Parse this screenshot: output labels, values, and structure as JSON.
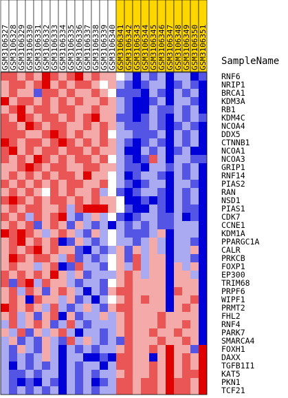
{
  "chart_data": {
    "type": "heatmap",
    "title": "",
    "row_header": "SampleName",
    "columns": [
      {
        "name": "GSM3106327",
        "group": "A"
      },
      {
        "name": "GSM3106328",
        "group": "A"
      },
      {
        "name": "GSM3106329",
        "group": "A"
      },
      {
        "name": "GSM3106330",
        "group": "A"
      },
      {
        "name": "GSM3106331",
        "group": "A"
      },
      {
        "name": "GSM3106332",
        "group": "A"
      },
      {
        "name": "GSM3106333",
        "group": "A"
      },
      {
        "name": "GSM3106334",
        "group": "A"
      },
      {
        "name": "GSM3106335",
        "group": "A"
      },
      {
        "name": "GSM3106336",
        "group": "A"
      },
      {
        "name": "GSM3106337",
        "group": "A"
      },
      {
        "name": "GSM3106338",
        "group": "A"
      },
      {
        "name": "GSM3106339",
        "group": "A"
      },
      {
        "name": "GSM3106340",
        "group": "A"
      },
      {
        "name": "GSM3106341",
        "group": "B"
      },
      {
        "name": "GSM3106342",
        "group": "B"
      },
      {
        "name": "GSM3106343",
        "group": "B"
      },
      {
        "name": "GSM3106344",
        "group": "B"
      },
      {
        "name": "GSM3106345",
        "group": "B"
      },
      {
        "name": "GSM3106346",
        "group": "B"
      },
      {
        "name": "GSM3106347",
        "group": "B"
      },
      {
        "name": "GSM3106348",
        "group": "B"
      },
      {
        "name": "GSM3106349",
        "group": "B"
      },
      {
        "name": "GSM3106350",
        "group": "B"
      },
      {
        "name": "GSM3106351",
        "group": "B"
      }
    ],
    "group_colors": {
      "A": "#ffffff",
      "B": "#ffd700"
    },
    "rows": [
      "RNF6",
      "NRIP1",
      "BRCA1",
      "KDM3A",
      "RB1",
      "KDM4C",
      "NCOA4",
      "DDX5",
      "CTNNB1",
      "NCOA1",
      "NCOA3",
      "GRIP1",
      "RNF14",
      "PIAS2",
      "RAN",
      "NSD1",
      "PIAS1",
      "CDK7",
      "CCNE1",
      "KDM1A",
      "PPARGC1A",
      "CALR",
      "PRKCB",
      "FOXP1",
      "EP300",
      "TRIM68",
      "PRPF6",
      "WIPF1",
      "PRMT2",
      "FHL2",
      "RNF4",
      "PARK7",
      "SMARCA4",
      "FOXH1",
      "DAXX",
      "TGFB1I1",
      "KAT5",
      "PKN1",
      "TCF21"
    ],
    "color_scale": {
      "min": -3,
      "max": 3,
      "low": "#0000d8",
      "mid": "#ffffff",
      "high": "#e00000"
    },
    "values": [
      [
        2.0,
        2.0,
        1.0,
        2.0,
        1.0,
        3.0,
        2.0,
        1.0,
        2.0,
        3.0,
        1.0,
        2.0,
        1.0,
        1.0,
        0.0,
        -1.0,
        -3.0,
        -1.0,
        -2.0,
        -1.0,
        -3.0,
        -1.0,
        -1.0,
        -3.0,
        -2.0
      ],
      [
        1.0,
        2.0,
        2.0,
        1.0,
        2.0,
        3.0,
        1.0,
        2.0,
        1.0,
        2.0,
        2.0,
        1.0,
        0.0,
        1.0,
        -1.0,
        -2.0,
        -3.0,
        -2.0,
        -1.0,
        -1.0,
        -3.0,
        -2.0,
        -1.0,
        -2.0,
        -3.0
      ],
      [
        1.0,
        2.0,
        1.0,
        1.0,
        -2.0,
        2.0,
        2.0,
        1.0,
        2.0,
        1.0,
        1.0,
        2.0,
        1.0,
        0.0,
        -2.0,
        -2.0,
        -2.0,
        -3.0,
        -1.0,
        -2.0,
        -3.0,
        -1.0,
        -2.0,
        -1.0,
        -3.0
      ],
      [
        3.0,
        1.0,
        2.0,
        2.0,
        1.0,
        2.0,
        1.0,
        2.0,
        1.0,
        2.0,
        1.0,
        1.0,
        2.0,
        1.0,
        -1.0,
        -2.0,
        -3.0,
        -3.0,
        -2.0,
        -1.0,
        -3.0,
        -1.0,
        -1.0,
        -2.0,
        -3.0
      ],
      [
        1.0,
        2.0,
        3.0,
        1.0,
        2.0,
        2.0,
        1.0,
        2.0,
        2.0,
        1.0,
        1.0,
        2.0,
        1.0,
        1.0,
        -1.0,
        -2.0,
        -3.0,
        -3.0,
        -1.0,
        -2.0,
        -2.0,
        -1.0,
        -2.0,
        -1.0,
        -3.0
      ],
      [
        2.0,
        1.0,
        3.0,
        2.0,
        1.0,
        2.0,
        2.0,
        1.0,
        2.0,
        1.0,
        2.0,
        3.0,
        1.0,
        1.0,
        -2.0,
        -2.0,
        -3.0,
        -2.0,
        -1.0,
        -2.0,
        -3.0,
        -1.0,
        -2.0,
        -1.0,
        -2.0
      ],
      [
        2.0,
        2.0,
        1.0,
        3.0,
        2.0,
        1.0,
        2.0,
        2.0,
        1.0,
        1.0,
        2.0,
        1.0,
        2.0,
        1.0,
        -1.0,
        -2.0,
        -2.0,
        -2.0,
        -1.0,
        -2.0,
        -3.0,
        -2.0,
        -1.0,
        -2.0,
        -3.0
      ],
      [
        2.0,
        2.0,
        2.0,
        1.0,
        1.0,
        2.0,
        3.0,
        2.0,
        1.0,
        2.0,
        1.0,
        1.0,
        2.0,
        0.0,
        -1.0,
        -1.0,
        -2.0,
        -2.0,
        -2.0,
        -1.0,
        -3.0,
        -1.0,
        -2.0,
        -1.0,
        -3.0
      ],
      [
        3.0,
        2.0,
        1.0,
        2.0,
        2.0,
        1.0,
        2.0,
        3.0,
        2.0,
        1.0,
        2.0,
        1.0,
        2.0,
        1.0,
        -1.0,
        -2.0,
        -3.0,
        -2.0,
        -1.0,
        -2.0,
        -3.0,
        -1.0,
        -2.0,
        -1.0,
        -3.0
      ],
      [
        2.0,
        3.0,
        1.0,
        2.0,
        1.0,
        2.0,
        2.0,
        1.0,
        2.0,
        2.0,
        1.0,
        2.0,
        1.0,
        1.0,
        -1.0,
        -3.0,
        -3.0,
        -1.0,
        -2.0,
        -1.0,
        -3.0,
        -2.0,
        -1.0,
        -3.0,
        -3.0
      ],
      [
        2.0,
        1.0,
        2.0,
        1.0,
        3.0,
        2.0,
        1.0,
        2.0,
        1.0,
        2.0,
        2.0,
        1.0,
        2.0,
        0.0,
        -1.0,
        -2.0,
        -3.0,
        -2.0,
        2.0,
        -1.0,
        -3.0,
        -1.0,
        -1.0,
        -2.0,
        -2.0
      ],
      [
        1.0,
        1.0,
        2.0,
        3.0,
        2.0,
        1.0,
        2.0,
        2.0,
        1.0,
        1.0,
        2.0,
        2.0,
        1.0,
        1.0,
        -1.0,
        -2.0,
        -2.0,
        -3.0,
        -1.0,
        -1.0,
        -2.0,
        -1.0,
        -2.0,
        -1.0,
        -3.0
      ],
      [
        1.0,
        2.0,
        1.0,
        2.0,
        1.0,
        2.0,
        1.0,
        2.0,
        2.0,
        1.0,
        3.0,
        1.0,
        1.0,
        0.0,
        -1.0,
        -3.0,
        -2.0,
        -1.0,
        -1.0,
        -2.0,
        -3.0,
        -1.0,
        -2.0,
        -1.0,
        -3.0
      ],
      [
        2.0,
        1.0,
        2.0,
        1.0,
        2.0,
        1.0,
        2.0,
        1.0,
        2.0,
        2.0,
        1.0,
        1.0,
        2.0,
        0.0,
        -1.0,
        -2.0,
        -3.0,
        -2.0,
        -1.0,
        -1.0,
        -3.0,
        -1.0,
        -1.0,
        -2.0,
        -3.0
      ],
      [
        1.0,
        2.0,
        1.0,
        2.0,
        1.0,
        0.0,
        2.0,
        1.0,
        2.0,
        1.0,
        1.0,
        2.0,
        -1.0,
        0.0,
        -2.0,
        -3.0,
        -2.0,
        -1.0,
        -1.0,
        -2.0,
        -3.0,
        -1.0,
        -2.0,
        -1.0,
        -3.0
      ],
      [
        2.0,
        3.0,
        2.0,
        1.0,
        2.0,
        1.0,
        2.0,
        2.0,
        1.0,
        2.0,
        1.0,
        2.0,
        1.0,
        1.0,
        0.0,
        -3.0,
        -3.0,
        -2.0,
        -3.0,
        -2.0,
        -3.0,
        -1.0,
        -2.0,
        -1.0,
        -3.0
      ],
      [
        1.0,
        2.0,
        1.0,
        2.0,
        2.0,
        1.0,
        1.0,
        2.0,
        -1.0,
        2.0,
        3.0,
        3.0,
        3.0,
        1.0,
        0.0,
        -2.0,
        -3.0,
        -3.0,
        -1.0,
        -2.0,
        -3.0,
        -1.0,
        -2.0,
        -2.0,
        -3.0
      ],
      [
        2.0,
        1.0,
        2.0,
        -1.0,
        2.0,
        1.0,
        2.0,
        3.0,
        -1.0,
        -2.0,
        -1.0,
        1.0,
        -1.0,
        0.0,
        -2.0,
        -3.0,
        -2.0,
        -1.0,
        -1.0,
        -2.0,
        -2.0,
        -1.0,
        -3.0,
        -2.0,
        -3.0
      ],
      [
        1.0,
        2.0,
        1.0,
        2.0,
        -2.0,
        1.0,
        2.0,
        1.0,
        -2.0,
        1.0,
        -1.0,
        -2.0,
        -1.0,
        -3.0,
        -1.0,
        -2.0,
        -1.0,
        -2.0,
        -1.0,
        -2.0,
        -2.0,
        -1.0,
        -1.0,
        -1.0,
        -3.0
      ],
      [
        3.0,
        2.0,
        3.0,
        2.0,
        1.0,
        -1.0,
        1.0,
        2.0,
        1.0,
        -1.0,
        -2.0,
        1.0,
        -1.0,
        0.0,
        -1.0,
        -2.0,
        -2.0,
        -2.0,
        -1.0,
        1.0,
        -3.0,
        -1.0,
        -1.0,
        -1.0,
        -3.0
      ],
      [
        1.0,
        2.0,
        3.0,
        1.0,
        2.0,
        1.0,
        2.0,
        -3.0,
        -2.0,
        1.0,
        -1.0,
        -2.0,
        -1.0,
        0.0,
        -1.0,
        -1.0,
        -2.0,
        -1.0,
        1.0,
        -1.0,
        -3.0,
        -1.0,
        -1.0,
        -2.0,
        -3.0
      ],
      [
        1.0,
        2.0,
        1.0,
        2.0,
        3.0,
        1.0,
        2.0,
        1.0,
        1.0,
        -2.0,
        -3.0,
        -1.0,
        -2.0,
        -1.0,
        1.0,
        -2.0,
        1.0,
        -1.0,
        1.0,
        -1.0,
        -3.0,
        -1.0,
        -1.0,
        1.0,
        -3.0
      ],
      [
        1.0,
        3.0,
        2.0,
        1.0,
        2.0,
        2.0,
        1.0,
        -1.0,
        2.0,
        -2.0,
        -1.0,
        -2.0,
        -1.0,
        0.0,
        1.0,
        -2.0,
        2.0,
        -1.0,
        1.0,
        1.0,
        -3.0,
        -1.0,
        -1.0,
        -2.0,
        -3.0
      ],
      [
        1.0,
        2.0,
        1.0,
        1.0,
        -1.0,
        1.0,
        2.0,
        -3.0,
        -2.0,
        2.0,
        -1.0,
        -1.0,
        -2.0,
        0.0,
        1.0,
        -1.0,
        2.0,
        -1.0,
        1.0,
        1.0,
        -3.0,
        1.0,
        -1.0,
        1.0,
        -3.0
      ],
      [
        2.0,
        1.0,
        2.0,
        1.0,
        2.0,
        1.0,
        3.0,
        1.0,
        -1.0,
        1.0,
        -2.0,
        -1.0,
        -1.0,
        -1.0,
        1.0,
        2.0,
        1.0,
        -1.0,
        1.0,
        1.0,
        -3.0,
        1.0,
        1.0,
        -1.0,
        -3.0
      ],
      [
        2.0,
        -2.0,
        2.0,
        3.0,
        -1.0,
        2.0,
        1.0,
        1.0,
        -1.0,
        -2.0,
        -1.0,
        -1.0,
        -2.0,
        0.0,
        1.0,
        2.0,
        1.0,
        1.0,
        1.0,
        1.0,
        -3.0,
        1.0,
        1.0,
        1.0,
        -3.0
      ],
      [
        1.0,
        2.0,
        -1.0,
        2.0,
        1.0,
        -2.0,
        1.0,
        2.0,
        1.0,
        -1.0,
        -3.0,
        -1.0,
        -2.0,
        1.0,
        2.0,
        2.0,
        1.0,
        1.0,
        1.0,
        1.0,
        -3.0,
        2.0,
        1.0,
        1.0,
        -3.0
      ],
      [
        1.0,
        2.0,
        1.0,
        -3.0,
        2.0,
        1.0,
        1.0,
        -1.0,
        1.0,
        -2.0,
        -1.0,
        -3.0,
        -1.0,
        0.0,
        1.0,
        2.0,
        1.0,
        2.0,
        1.0,
        1.0,
        -3.0,
        1.0,
        1.0,
        2.0,
        -3.0
      ],
      [
        3.0,
        2.0,
        1.0,
        2.0,
        1.0,
        -1.0,
        2.0,
        -1.0,
        -2.0,
        -1.0,
        1.0,
        -1.0,
        -2.0,
        1.0,
        2.0,
        2.0,
        1.0,
        1.0,
        1.0,
        1.0,
        -3.0,
        1.0,
        2.0,
        1.0,
        -3.0
      ],
      [
        1.0,
        2.0,
        -1.0,
        1.0,
        -2.0,
        1.0,
        2.0,
        -3.0,
        1.0,
        -2.0,
        -1.0,
        -1.0,
        1.0,
        -1.0,
        1.0,
        2.0,
        1.0,
        1.0,
        1.0,
        2.0,
        1.0,
        1.0,
        1.0,
        1.0,
        -3.0
      ],
      [
        -1.0,
        2.0,
        -1.0,
        1.0,
        2.0,
        1.0,
        -2.0,
        -1.0,
        2.0,
        -1.0,
        -2.0,
        -1.0,
        -1.0,
        -1.0,
        1.0,
        2.0,
        1.0,
        1.0,
        1.0,
        2.0,
        1.0,
        1.0,
        2.0,
        1.0,
        -3.0
      ],
      [
        1.0,
        -1.0,
        2.0,
        -2.0,
        1.0,
        -1.0,
        1.0,
        2.0,
        -1.0,
        -3.0,
        -1.0,
        -1.0,
        -2.0,
        -1.0,
        1.0,
        2.0,
        1.0,
        1.0,
        2.0,
        1.0,
        1.0,
        2.0,
        1.0,
        1.0,
        -3.0
      ],
      [
        -1.0,
        1.0,
        -2.0,
        -1.0,
        -2.0,
        1.0,
        -1.0,
        -2.0,
        2.0,
        -1.0,
        1.0,
        -1.0,
        -2.0,
        -1.0,
        -2.0,
        2.0,
        1.0,
        1.0,
        1.0,
        2.0,
        1.0,
        1.0,
        2.0,
        1.0,
        -3.0
      ],
      [
        -1.0,
        -2.0,
        1.0,
        -1.0,
        -2.0,
        1.0,
        -1.0,
        -3.0,
        -1.0,
        -2.0,
        -1.0,
        -2.0,
        -1.0,
        -1.0,
        1.0,
        2.0,
        1.0,
        1.0,
        2.0,
        1.0,
        3.0,
        1.0,
        1.0,
        -2.0,
        3.0
      ],
      [
        -1.0,
        -2.0,
        -1.0,
        -2.0,
        -1.0,
        1.0,
        -1.0,
        -3.0,
        -1.0,
        -1.0,
        -3.0,
        -3.0,
        -2.0,
        -3.0,
        2.0,
        2.0,
        1.0,
        1.0,
        -3.0,
        1.0,
        3.0,
        1.0,
        2.0,
        1.0,
        3.0
      ],
      [
        -1.0,
        -3.0,
        -1.0,
        -2.0,
        -1.0,
        -2.0,
        -1.0,
        -3.0,
        -1.0,
        -2.0,
        -1.0,
        -1.0,
        -3.0,
        -1.0,
        2.0,
        2.0,
        1.0,
        1.0,
        2.0,
        1.0,
        3.0,
        1.0,
        2.0,
        1.0,
        3.0
      ],
      [
        -1.0,
        -2.0,
        -2.0,
        -1.0,
        -2.0,
        -1.0,
        -1.0,
        -3.0,
        -1.0,
        -2.0,
        -1.0,
        -2.0,
        -1.0,
        -1.0,
        1.0,
        2.0,
        1.0,
        1.0,
        2.0,
        1.0,
        3.0,
        1.0,
        2.0,
        2.0,
        3.0
      ],
      [
        -1.0,
        -2.0,
        -3.0,
        -2.0,
        -3.0,
        -1.0,
        -2.0,
        -3.0,
        -1.0,
        -2.0,
        -1.0,
        -3.0,
        -2.0,
        -1.0,
        2.0,
        2.0,
        1.0,
        2.0,
        2.0,
        1.0,
        3.0,
        2.0,
        2.0,
        1.0,
        3.0
      ],
      [
        -1.0,
        -2.0,
        -1.0,
        -2.0,
        -1.0,
        -2.0,
        -1.0,
        -3.0,
        -1.0,
        -2.0,
        -1.0,
        -2.0,
        -1.0,
        -1.0,
        2.0,
        2.0,
        1.0,
        2.0,
        2.0,
        1.0,
        3.0,
        2.0,
        2.0,
        1.0,
        3.0
      ]
    ]
  }
}
